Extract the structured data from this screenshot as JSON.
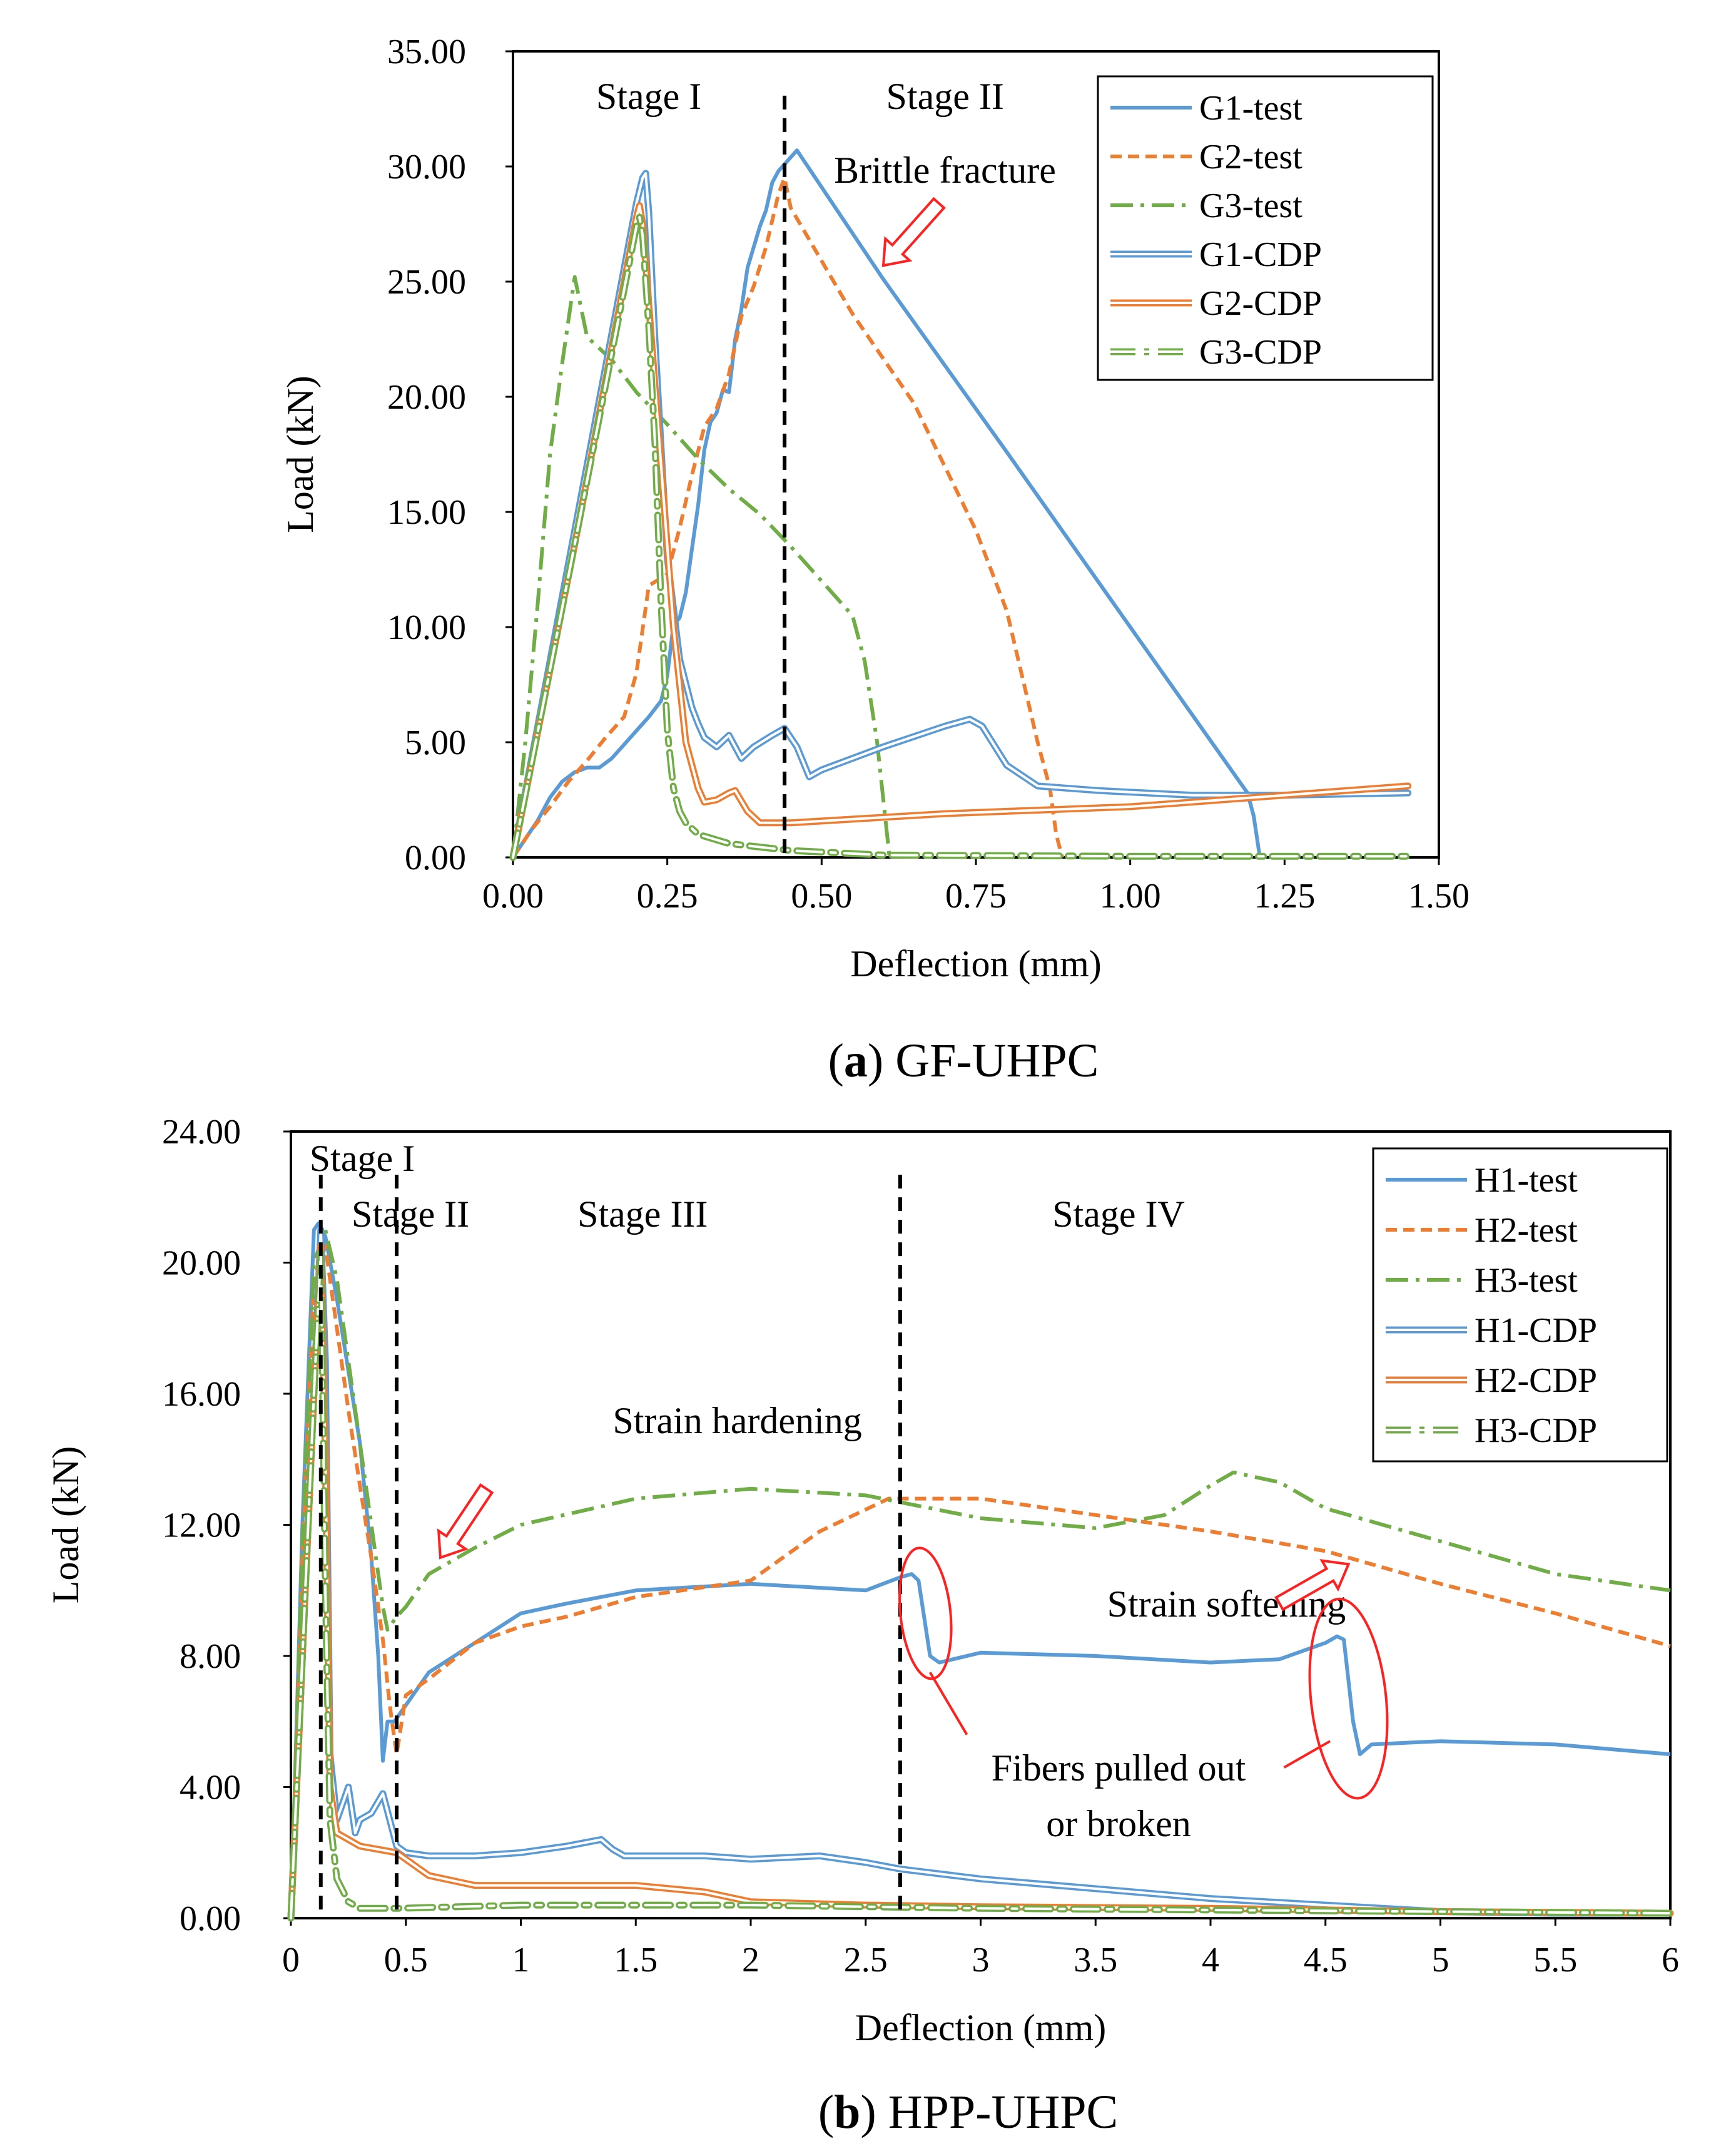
{
  "chart_data": [
    {
      "type": "line",
      "caption_letter": "a",
      "caption_text": "GF-UHPC",
      "xlabel": "Deflection (mm)",
      "ylabel": "Load (kN)",
      "xlim": [
        0,
        1.5
      ],
      "ylim": [
        0,
        35
      ],
      "xticks": [
        0,
        0.25,
        0.5,
        0.75,
        1.0,
        1.25,
        1.5
      ],
      "xtick_labels": [
        "0.00",
        "0.25",
        "0.50",
        "0.75",
        "1.00",
        "1.25",
        "1.50"
      ],
      "yticks": [
        0,
        5,
        10,
        15,
        20,
        25,
        30,
        35
      ],
      "ytick_labels": [
        "0.00",
        "5.00",
        "10.00",
        "15.00",
        "20.00",
        "25.00",
        "30.00",
        "35.00"
      ],
      "stage_lines": [
        0.44
      ],
      "stages": [
        {
          "label": "Stage I",
          "x": 0.22,
          "y": 32.5
        },
        {
          "label": "Stage II",
          "x": 0.7,
          "y": 32.5
        }
      ],
      "annotations": [
        {
          "text": "Brittle fracture",
          "x": 0.52,
          "y": 29.3,
          "arrow_from": [
            0.69,
            28.4
          ],
          "arrow_to": [
            0.6,
            25.7
          ]
        }
      ],
      "legend_position": "top-right",
      "series": [
        {
          "name": "G1-test",
          "color": "#5B9BD5",
          "style": "solid",
          "x": [
            0,
            0.02,
            0.04,
            0.06,
            0.08,
            0.1,
            0.12,
            0.14,
            0.16,
            0.18,
            0.2,
            0.22,
            0.24,
            0.25,
            0.26,
            0.27,
            0.28,
            0.29,
            0.3,
            0.31,
            0.32,
            0.33,
            0.34,
            0.35,
            0.36,
            0.37,
            0.38,
            0.39,
            0.4,
            0.41,
            0.42,
            0.43,
            0.44,
            0.45,
            0.46,
            0.6,
            0.8,
            1.0,
            1.19,
            1.2,
            1.21
          ],
          "y": [
            0,
            0.8,
            1.6,
            2.6,
            3.3,
            3.7,
            3.9,
            3.9,
            4.3,
            4.9,
            5.5,
            6.1,
            6.8,
            7.9,
            10.1,
            10.4,
            11.5,
            13.4,
            15.3,
            17.7,
            18.9,
            19.3,
            20.3,
            20.2,
            22.5,
            23.8,
            25.6,
            26.5,
            27.4,
            28.1,
            29.3,
            29.8,
            30.1,
            30.4,
            30.7,
            25.1,
            17.6,
            10.0,
            2.8,
            1.8,
            0
          ]
        },
        {
          "name": "G2-test",
          "color": "#ED7D31",
          "style": "dashed",
          "x": [
            0,
            0.03,
            0.06,
            0.09,
            0.12,
            0.15,
            0.18,
            0.2,
            0.22,
            0.25,
            0.27,
            0.29,
            0.31,
            0.33,
            0.35,
            0.37,
            0.39,
            0.41,
            0.43,
            0.44,
            0.45,
            0.55,
            0.65,
            0.75,
            0.8,
            0.85,
            0.87,
            0.88,
            0.89
          ],
          "y": [
            0,
            1.2,
            2.2,
            3.3,
            4.2,
            5.2,
            6.1,
            8.0,
            11.8,
            12.3,
            14.3,
            16.6,
            18.7,
            19.5,
            21.0,
            23.5,
            24.8,
            26.5,
            28.8,
            29.5,
            28.2,
            23.6,
            19.7,
            14.2,
            10.7,
            5.0,
            3.0,
            1.0,
            0
          ]
        },
        {
          "name": "G3-test",
          "color": "#70AD47",
          "style": "dashdot",
          "x": [
            0,
            0.02,
            0.04,
            0.06,
            0.08,
            0.1,
            0.12,
            0.16,
            0.2,
            0.25,
            0.3,
            0.35,
            0.4,
            0.45,
            0.5,
            0.55,
            0.57,
            0.59,
            0.6,
            0.61
          ],
          "y": [
            0,
            5.0,
            11.0,
            17.5,
            21.5,
            25.2,
            22.6,
            21.6,
            20.2,
            18.8,
            17.3,
            16.0,
            14.9,
            13.5,
            12.0,
            10.5,
            8.5,
            5.0,
            2.5,
            0
          ]
        },
        {
          "name": "G1-CDP",
          "color": "#5B9BD5",
          "style": "double",
          "x": [
            0,
            0.1,
            0.2,
            0.21,
            0.215,
            0.22,
            0.23,
            0.25,
            0.27,
            0.29,
            0.3,
            0.31,
            0.33,
            0.35,
            0.37,
            0.39,
            0.42,
            0.44,
            0.46,
            0.48,
            0.5,
            0.6,
            0.7,
            0.74,
            0.76,
            0.8,
            0.85,
            0.95,
            1.1,
            1.25,
            1.45
          ],
          "y": [
            0,
            14.2,
            28.4,
            29.5,
            29.7,
            28.0,
            22.5,
            13.0,
            8.6,
            6.5,
            5.8,
            5.2,
            4.8,
            5.3,
            4.3,
            4.8,
            5.3,
            5.6,
            4.8,
            3.5,
            3.8,
            4.8,
            5.7,
            6.0,
            5.7,
            4.0,
            3.1,
            2.9,
            2.7,
            2.7,
            2.8
          ]
        },
        {
          "name": "G2-CDP",
          "color": "#ED7D31",
          "style": "double",
          "x": [
            0,
            0.1,
            0.2,
            0.205,
            0.21,
            0.22,
            0.24,
            0.26,
            0.28,
            0.3,
            0.31,
            0.33,
            0.35,
            0.36,
            0.38,
            0.4,
            0.45,
            0.7,
            1.0,
            1.2,
            1.45
          ],
          "y": [
            0,
            13.6,
            27.8,
            28.3,
            27.5,
            24.0,
            17.0,
            10.0,
            5.0,
            3.0,
            2.4,
            2.5,
            2.8,
            2.9,
            2.0,
            1.5,
            1.5,
            1.9,
            2.2,
            2.6,
            3.1
          ]
        },
        {
          "name": "G3-CDP",
          "color": "#70AD47",
          "style": "double-dashdot",
          "x": [
            0,
            0.1,
            0.2,
            0.205,
            0.21,
            0.22,
            0.23,
            0.24,
            0.25,
            0.26,
            0.27,
            0.28,
            0.3,
            0.35,
            0.45,
            0.6,
            1.0,
            1.45
          ],
          "y": [
            0,
            13.6,
            27.4,
            27.8,
            27.0,
            23.0,
            18.0,
            11.0,
            5.5,
            3.0,
            2.0,
            1.5,
            1.0,
            0.6,
            0.3,
            0.1,
            0.05,
            0.05
          ]
        }
      ]
    },
    {
      "type": "line",
      "caption_letter": "b",
      "caption_text": "HPP-UHPC",
      "xlabel": "Deflection (mm)",
      "ylabel": "Load (kN)",
      "xlim": [
        0,
        6
      ],
      "ylim": [
        0,
        24
      ],
      "xticks": [
        0,
        0.5,
        1,
        1.5,
        2,
        2.5,
        3,
        3.5,
        4,
        4.5,
        5,
        5.5,
        6
      ],
      "xtick_labels": [
        "0",
        "0.5",
        "1",
        "1.5",
        "2",
        "2.5",
        "3",
        "3.5",
        "4",
        "4.5",
        "5",
        "5.5",
        "6"
      ],
      "yticks": [
        0,
        4,
        8,
        12,
        16,
        20,
        24
      ],
      "ytick_labels": [
        "0.00",
        "4.00",
        "8.00",
        "12.00",
        "16.00",
        "20.00",
        "24.00"
      ],
      "stage_lines": [
        0.13,
        0.46,
        2.65
      ],
      "stages": [
        {
          "label": "Stage I",
          "x": 0.31,
          "y": 22.8
        },
        {
          "label": "Stage II",
          "x": 0.52,
          "y": 21.1
        },
        {
          "label": "Stage III",
          "x": 1.53,
          "y": 21.1
        },
        {
          "label": "Stage IV",
          "x": 3.6,
          "y": 21.1
        }
      ],
      "annotations": [
        {
          "text": "Strain hardening",
          "x": 1.4,
          "y": 14.8,
          "arrow_from": [
            0.85,
            13.1
          ],
          "arrow_to": [
            0.65,
            11.0
          ]
        },
        {
          "text": "Strain softening",
          "x": 3.55,
          "y": 9.2,
          "arrow_from": [
            4.3,
            9.6
          ],
          "arrow_to": [
            4.6,
            10.8
          ]
        },
        {
          "text": "Fibers pulled out",
          "x": 3.6,
          "y": 4.2
        },
        {
          "text": "or broken",
          "x": 3.6,
          "y": 2.5
        }
      ],
      "legend_position": "top-right",
      "series": [
        {
          "name": "H1-test",
          "color": "#5B9BD5",
          "style": "solid",
          "x": [
            0,
            0.05,
            0.1,
            0.12,
            0.15,
            0.2,
            0.25,
            0.3,
            0.35,
            0.38,
            0.4,
            0.42,
            0.45,
            0.5,
            0.6,
            0.8,
            1.0,
            1.2,
            1.5,
            2.0,
            2.5,
            2.65,
            2.7,
            2.73,
            2.78,
            2.82,
            3.0,
            3.5,
            4.0,
            4.3,
            4.5,
            4.55,
            4.58,
            4.62,
            4.65,
            4.7,
            5.0,
            5.5,
            6.0
          ],
          "y": [
            0,
            12.0,
            21.0,
            21.2,
            20.8,
            18.9,
            16.7,
            14.5,
            11.0,
            8.0,
            4.8,
            6.0,
            6.0,
            6.5,
            7.5,
            8.4,
            9.3,
            9.6,
            10.0,
            10.2,
            10.0,
            10.4,
            10.5,
            10.3,
            8.0,
            7.8,
            8.1,
            8.0,
            7.8,
            7.9,
            8.4,
            8.6,
            8.5,
            6.0,
            5.0,
            5.3,
            5.4,
            5.3,
            5.0
          ]
        },
        {
          "name": "H2-test",
          "color": "#ED7D31",
          "style": "dashed",
          "x": [
            0,
            0.05,
            0.1,
            0.15,
            0.2,
            0.25,
            0.3,
            0.35,
            0.4,
            0.43,
            0.46,
            0.5,
            0.6,
            0.8,
            1.0,
            1.2,
            1.5,
            2.0,
            2.3,
            2.6,
            2.8,
            3.0,
            3.5,
            4.0,
            4.5,
            5.0,
            5.5,
            6.0
          ],
          "y": [
            0,
            11.0,
            19.5,
            20.5,
            18.0,
            15.5,
            13.2,
            11.0,
            8.5,
            6.5,
            5.0,
            6.8,
            7.3,
            8.4,
            8.9,
            9.2,
            9.8,
            10.3,
            11.8,
            12.8,
            12.8,
            12.8,
            12.3,
            11.8,
            11.2,
            10.2,
            9.3,
            8.3
          ]
        },
        {
          "name": "H3-test",
          "color": "#70AD47",
          "style": "dashdot",
          "x": [
            0,
            0.05,
            0.1,
            0.15,
            0.2,
            0.25,
            0.3,
            0.35,
            0.4,
            0.42,
            0.46,
            0.5,
            0.6,
            0.8,
            1.0,
            1.5,
            2.0,
            2.5,
            3.0,
            3.5,
            3.8,
            4.0,
            4.1,
            4.3,
            4.5,
            5.0,
            5.5,
            6.0
          ],
          "y": [
            0,
            11.5,
            20.0,
            21.0,
            19.5,
            17.0,
            14.5,
            12.0,
            9.5,
            8.8,
            9.2,
            9.5,
            10.5,
            11.3,
            12.0,
            12.8,
            13.1,
            12.9,
            12.2,
            11.9,
            12.3,
            13.2,
            13.6,
            13.3,
            12.5,
            11.5,
            10.5,
            10.0
          ]
        },
        {
          "name": "H1-CDP",
          "color": "#5B9BD5",
          "style": "double",
          "x": [
            0,
            0.05,
            0.1,
            0.13,
            0.15,
            0.17,
            0.2,
            0.25,
            0.28,
            0.3,
            0.35,
            0.4,
            0.43,
            0.46,
            0.5,
            0.6,
            0.8,
            1.0,
            1.2,
            1.35,
            1.4,
            1.45,
            1.5,
            1.8,
            2.0,
            2.3,
            2.5,
            2.65,
            3.0,
            3.5,
            4.0,
            4.5,
            5.0,
            5.5,
            6.0
          ],
          "y": [
            0,
            8.0,
            16.0,
            21.0,
            17.0,
            5.0,
            3.0,
            4.0,
            2.6,
            3.0,
            3.2,
            3.8,
            3.0,
            2.2,
            2.0,
            1.9,
            1.9,
            2.0,
            2.2,
            2.4,
            2.1,
            1.9,
            1.9,
            1.9,
            1.8,
            1.9,
            1.7,
            1.5,
            1.2,
            0.9,
            0.6,
            0.4,
            0.2,
            0.15,
            0.15
          ]
        },
        {
          "name": "H2-CDP",
          "color": "#ED7D31",
          "style": "double",
          "x": [
            0,
            0.05,
            0.1,
            0.13,
            0.15,
            0.17,
            0.2,
            0.3,
            0.46,
            0.6,
            0.8,
            1.0,
            1.5,
            1.8,
            2.0,
            2.5,
            3.0,
            4.0,
            5.0,
            6.0
          ],
          "y": [
            0,
            8.0,
            16.0,
            20.5,
            14.0,
            4.0,
            2.6,
            2.2,
            2.0,
            1.3,
            1.0,
            1.0,
            1.0,
            0.8,
            0.5,
            0.4,
            0.35,
            0.3,
            0.2,
            0.15
          ]
        },
        {
          "name": "H3-CDP",
          "color": "#70AD47",
          "style": "double-dashdot",
          "x": [
            0,
            0.05,
            0.1,
            0.13,
            0.15,
            0.17,
            0.2,
            0.25,
            0.3,
            0.46,
            1.0,
            2.0,
            3.0,
            4.0,
            5.0,
            6.0
          ],
          "y": [
            0,
            8.0,
            16.0,
            20.3,
            10.0,
            3.0,
            1.2,
            0.5,
            0.3,
            0.3,
            0.4,
            0.4,
            0.3,
            0.25,
            0.2,
            0.15
          ]
        }
      ]
    }
  ]
}
